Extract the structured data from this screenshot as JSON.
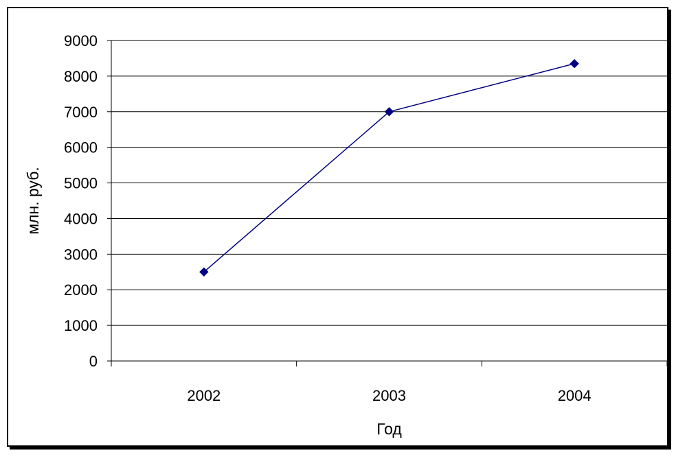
{
  "chart_data": {
    "type": "line",
    "title": "",
    "xlabel": "Год",
    "ylabel": "млн. руб.",
    "categories": [
      "2002",
      "2003",
      "2004"
    ],
    "series": [
      {
        "values": [
          2500,
          7000,
          8350
        ]
      }
    ],
    "ylim": [
      0,
      9000
    ],
    "yticks": [
      "0",
      "1000",
      "2000",
      "3000",
      "4000",
      "5000",
      "6000",
      "7000",
      "8000",
      "9000"
    ],
    "grid": true,
    "legend": "none",
    "colors": {
      "line": "#000080",
      "marker": "#000080",
      "grid": "#000000",
      "axis": "#000000"
    }
  }
}
